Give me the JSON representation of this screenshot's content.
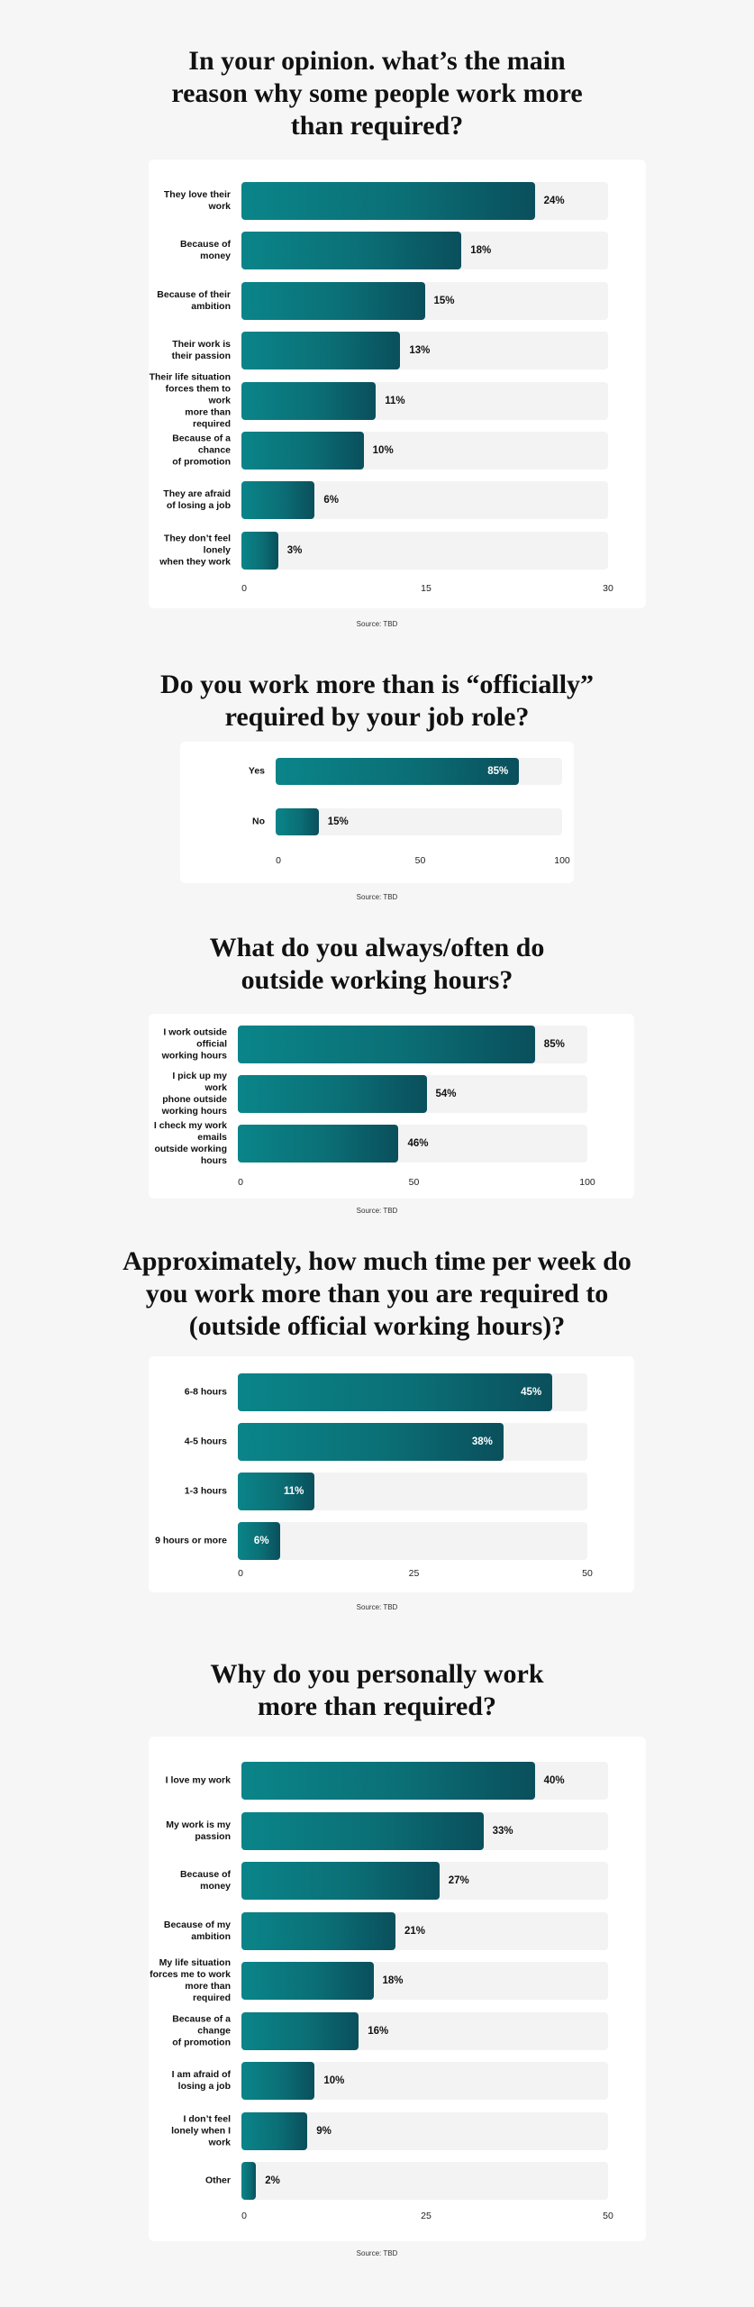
{
  "colors": {
    "background": "#f6f6f6",
    "card": "#ffffff",
    "bar_start": "#0a8589",
    "bar_end": "#0a4f5c",
    "track": "#f3f3f3"
  },
  "chart_data": [
    {
      "type": "bar",
      "orientation": "horizontal",
      "title_lines": [
        "In your opinion. what’s the main",
        "reason why some people work more",
        "than required?"
      ],
      "categories": [
        "They love their work",
        "Because of money",
        "Because of their ambition",
        "Their work is their passion",
        "Their life situation forces them to work more than required",
        "Because of a chance of promotion",
        "They are afraid of losing a job",
        "They don’t feel lonely when they work"
      ],
      "label_lines": [
        [
          "They love their work"
        ],
        [
          "Because of money"
        ],
        [
          "Because of their",
          "ambition"
        ],
        [
          "Their work is",
          "their passion"
        ],
        [
          "Their life situation",
          "forces them to work",
          "more than required"
        ],
        [
          "Because of a chance",
          "of promotion"
        ],
        [
          "They are afraid",
          "of losing a job"
        ],
        [
          "They don’t feel lonely",
          "when they work"
        ]
      ],
      "values": [
        24,
        18,
        15,
        13,
        11,
        10,
        6,
        3
      ],
      "value_labels": [
        "24%",
        "18%",
        "15%",
        "13%",
        "11%",
        "10%",
        "6%",
        "3%"
      ],
      "xlim": [
        0,
        30
      ],
      "ticks": [
        "0",
        "15",
        "30"
      ],
      "labels_inside": false,
      "source": "Source: TBD"
    },
    {
      "type": "bar",
      "orientation": "horizontal",
      "title_lines": [
        "Do you work more than is “officially”",
        "required by your job role?"
      ],
      "categories": [
        "Yes",
        "No"
      ],
      "label_lines": [
        [
          "Yes"
        ],
        [
          "No"
        ]
      ],
      "values": [
        85,
        15
      ],
      "value_labels": [
        "85%",
        "15%"
      ],
      "inside": [
        true,
        false
      ],
      "xlim": [
        0,
        100
      ],
      "ticks": [
        "0",
        "50",
        "100"
      ],
      "source": "Source: TBD"
    },
    {
      "type": "bar",
      "orientation": "horizontal",
      "title_lines": [
        "What do you always/often do",
        "outside working hours?"
      ],
      "categories": [
        "I work outside official working hours",
        "I pick up my work phone outside working hours",
        "I check my work emails outside working hours"
      ],
      "label_lines": [
        [
          "I work outside official",
          "working hours"
        ],
        [
          "I pick up my work",
          "phone outside",
          "working hours"
        ],
        [
          "I check my work emails",
          "outside working hours"
        ]
      ],
      "values": [
        85,
        54,
        46
      ],
      "value_labels": [
        "85%",
        "54%",
        "46%"
      ],
      "inside": [
        false,
        false,
        false
      ],
      "xlim": [
        0,
        100
      ],
      "ticks": [
        "0",
        "50",
        "100"
      ],
      "source": "Source: TBD"
    },
    {
      "type": "bar",
      "orientation": "horizontal",
      "title_lines": [
        "Approximately, how much time per week do",
        "you work more than you are required to",
        "(outside official working hours)?"
      ],
      "categories": [
        "6-8 hours",
        "4-5 hours",
        "1-3 hours",
        "9 hours or more"
      ],
      "label_lines": [
        [
          "6-8 hours"
        ],
        [
          "4-5 hours"
        ],
        [
          "1-3 hours"
        ],
        [
          "9 hours or more"
        ]
      ],
      "values": [
        45,
        38,
        11,
        6
      ],
      "value_labels": [
        "45%",
        "38%",
        "11%",
        "6%"
      ],
      "inside": [
        true,
        true,
        true,
        true
      ],
      "xlim": [
        0,
        50
      ],
      "ticks": [
        "0",
        "25",
        "50"
      ],
      "source": "Source: TBD"
    },
    {
      "type": "bar",
      "orientation": "horizontal",
      "title_lines": [
        "Why do you personally work",
        "more than required?"
      ],
      "categories": [
        "I love my work",
        "My work is my passion",
        "Because of money",
        "Because of my ambition",
        "My life situation forces me to work more than required",
        "Because of a change of promotion",
        "I am afraid of losing a job",
        "I don’t feel lonely when I work",
        "Other"
      ],
      "label_lines": [
        [
          "I love my work"
        ],
        [
          "My work is my passion"
        ],
        [
          "Because of money"
        ],
        [
          "Because of my",
          "ambition"
        ],
        [
          "My life situation",
          "forces me to work",
          "more than required"
        ],
        [
          "Because of a change",
          "of promotion"
        ],
        [
          "I am afraid of",
          "losing a job"
        ],
        [
          "I don’t feel",
          "lonely when I",
          "work"
        ],
        [
          "Other"
        ]
      ],
      "values": [
        40,
        33,
        27,
        21,
        18,
        16,
        10,
        9,
        2
      ],
      "value_labels": [
        "40%",
        "33%",
        "27%",
        "21%",
        "18%",
        "16%",
        "10%",
        "9%",
        "2%"
      ],
      "xlim": [
        0,
        50
      ],
      "ticks": [
        "0",
        "25",
        "50"
      ],
      "source": "Source: TBD"
    }
  ]
}
